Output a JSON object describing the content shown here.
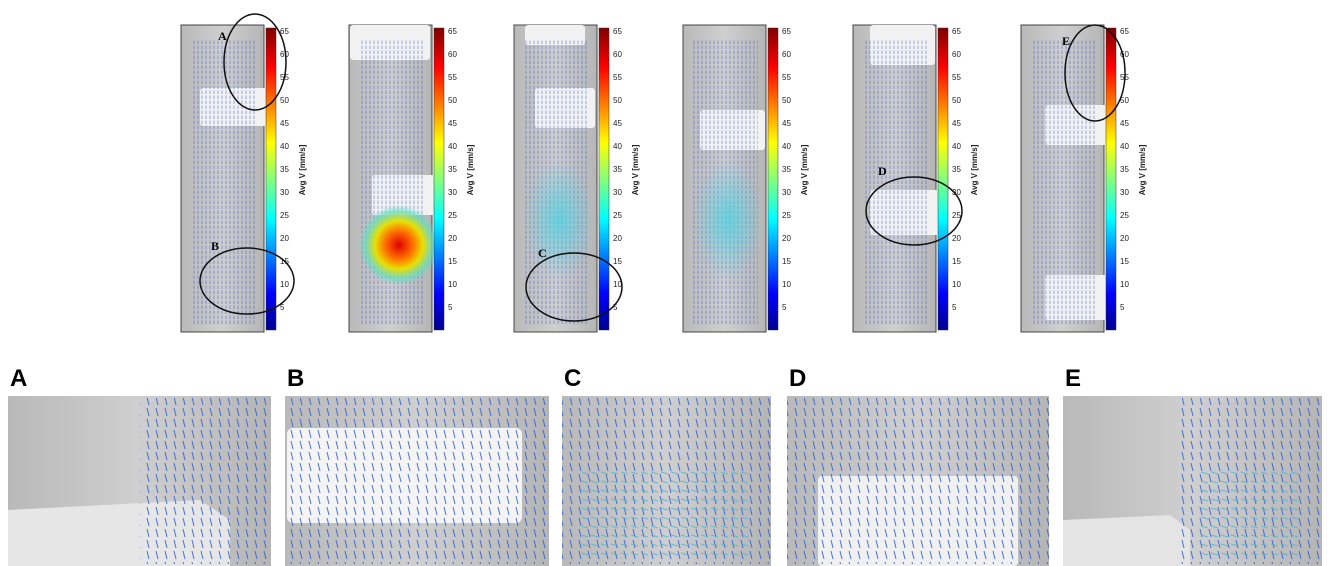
{
  "colorbar": {
    "label": "Avg V [mm/s]",
    "ticks": [
      5,
      10,
      15,
      20,
      25,
      30,
      35,
      40,
      45,
      50,
      55,
      60,
      65
    ]
  },
  "overview_callouts": [
    "A",
    "B",
    "C",
    "D",
    "E"
  ],
  "zoom_labels": [
    "A",
    "B",
    "C",
    "D",
    "E"
  ]
}
